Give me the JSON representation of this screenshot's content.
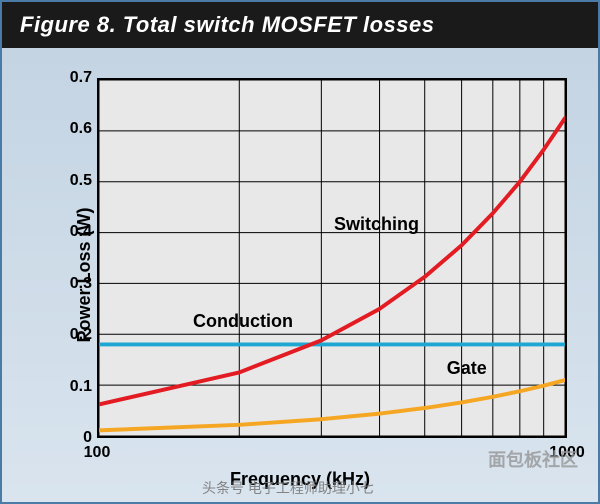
{
  "figure": {
    "title": "Figure 8. Total switch MOSFET losses",
    "title_bg": "#1a1a1a",
    "title_color": "#ffffff",
    "title_fontsize": 22,
    "border_color": "#4a7ba6",
    "bg_gradient_top": "#c4d4e3",
    "bg_gradient_bottom": "#d9e4ee"
  },
  "chart": {
    "type": "line",
    "plot_bg": "#e8e8e8",
    "grid_color": "#000000",
    "grid_width": 1,
    "axis_color": "#000000",
    "axis_width": 2,
    "xlabel": "Frequency (kHz)",
    "ylabel": "Power Loss (W)",
    "label_fontsize": 18,
    "x_scale": "log",
    "xlim": [
      100,
      1000
    ],
    "xticks": [
      100,
      1000
    ],
    "x_minor_grid": [
      200,
      300,
      400,
      500,
      600,
      700,
      800,
      900
    ],
    "ylim": [
      0,
      0.7
    ],
    "yticks": [
      0,
      0.1,
      0.2,
      0.3,
      0.4,
      0.5,
      0.6,
      0.7
    ],
    "tick_fontsize": 16
  },
  "series": {
    "switching": {
      "label": "Switching",
      "color": "#e31b23",
      "line_width": 4,
      "label_x_frac": 0.5,
      "label_y_frac": 0.4,
      "x": [
        100,
        200,
        300,
        400,
        500,
        600,
        700,
        800,
        900,
        1000
      ],
      "y": [
        0.062,
        0.125,
        0.188,
        0.25,
        0.313,
        0.375,
        0.438,
        0.5,
        0.563,
        0.625
      ]
    },
    "conduction": {
      "label": "Conduction",
      "color": "#1fa7d4",
      "line_width": 4,
      "label_x_frac": 0.2,
      "label_y_frac": 0.67,
      "x": [
        100,
        1000
      ],
      "y": [
        0.18,
        0.18
      ]
    },
    "gate": {
      "label": "Gate",
      "color": "#f5a623",
      "line_width": 4,
      "label_x_frac": 0.74,
      "label_y_frac": 0.8,
      "x": [
        100,
        200,
        300,
        400,
        500,
        600,
        700,
        800,
        900,
        1000
      ],
      "y": [
        0.011,
        0.022,
        0.033,
        0.044,
        0.055,
        0.066,
        0.077,
        0.088,
        0.099,
        0.11
      ]
    }
  },
  "watermarks": {
    "footer": "头条号 电子工程师助理小七",
    "right": "面包板社区"
  }
}
